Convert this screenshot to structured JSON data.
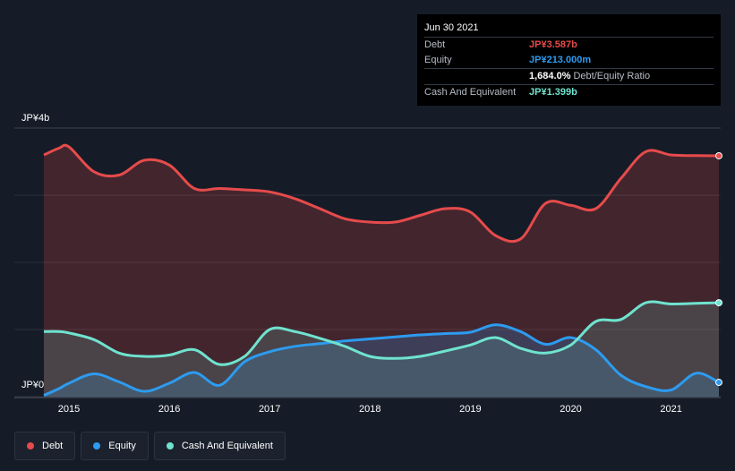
{
  "tooltip": {
    "date": "Jun 30 2021",
    "rows": [
      {
        "label": "Debt",
        "value": "JP¥3.587b",
        "color": "#e64b4b"
      },
      {
        "label": "Equity",
        "value": "JP¥213.000m",
        "color": "#2d9bf0"
      },
      {
        "label": "",
        "value": "1,684.0%",
        "suffix": "Debt/Equity Ratio",
        "color": "#ffffff"
      },
      {
        "label": "Cash And Equivalent",
        "value": "JP¥1.399b",
        "color": "#6fe3cf"
      }
    ]
  },
  "axes": {
    "y_top_label": "JP¥4b",
    "y_bottom_label": "JP¥0"
  },
  "legend": [
    {
      "label": "Debt",
      "color": "#e64b4b"
    },
    {
      "label": "Equity",
      "color": "#2d9bf0"
    },
    {
      "label": "Cash And Equivalent",
      "color": "#6fe3cf"
    }
  ],
  "chart_data": {
    "type": "area",
    "x_ticks": [
      "2015",
      "2016",
      "2017",
      "2018",
      "2019",
      "2020",
      "2021"
    ],
    "ylim": [
      0,
      4
    ],
    "y_unit": "JP¥ billions",
    "grid": true,
    "x": [
      2014.75,
      2014.9,
      2015.0,
      2015.25,
      2015.5,
      2015.75,
      2016.0,
      2016.25,
      2016.5,
      2016.75,
      2017.0,
      2017.25,
      2017.5,
      2017.75,
      2018.0,
      2018.25,
      2018.5,
      2018.75,
      2019.0,
      2019.25,
      2019.5,
      2019.75,
      2020.0,
      2020.25,
      2020.5,
      2020.75,
      2021.0,
      2021.25,
      2021.5
    ],
    "series": [
      {
        "name": "Debt",
        "color": "#e64b4b",
        "values": [
          3.6,
          3.7,
          3.72,
          3.35,
          3.3,
          3.52,
          3.45,
          3.1,
          3.1,
          3.08,
          3.05,
          2.95,
          2.8,
          2.65,
          2.6,
          2.6,
          2.7,
          2.8,
          2.75,
          2.4,
          2.35,
          2.88,
          2.85,
          2.8,
          3.25,
          3.65,
          3.6,
          3.59,
          3.587
        ]
      },
      {
        "name": "Equity",
        "color": "#2d9bf0",
        "values": [
          0.02,
          0.12,
          0.2,
          0.34,
          0.22,
          0.08,
          0.2,
          0.36,
          0.17,
          0.52,
          0.67,
          0.75,
          0.79,
          0.83,
          0.86,
          0.89,
          0.92,
          0.94,
          0.96,
          1.07,
          0.97,
          0.78,
          0.88,
          0.7,
          0.32,
          0.15,
          0.1,
          0.35,
          0.213
        ]
      },
      {
        "name": "Cash And Equivalent",
        "color": "#6fe3cf",
        "values": [
          0.97,
          0.97,
          0.95,
          0.85,
          0.65,
          0.6,
          0.62,
          0.7,
          0.48,
          0.6,
          1.0,
          0.97,
          0.87,
          0.75,
          0.6,
          0.57,
          0.6,
          0.68,
          0.77,
          0.88,
          0.72,
          0.65,
          0.77,
          1.12,
          1.15,
          1.4,
          1.38,
          1.39,
          1.399
        ]
      }
    ]
  }
}
